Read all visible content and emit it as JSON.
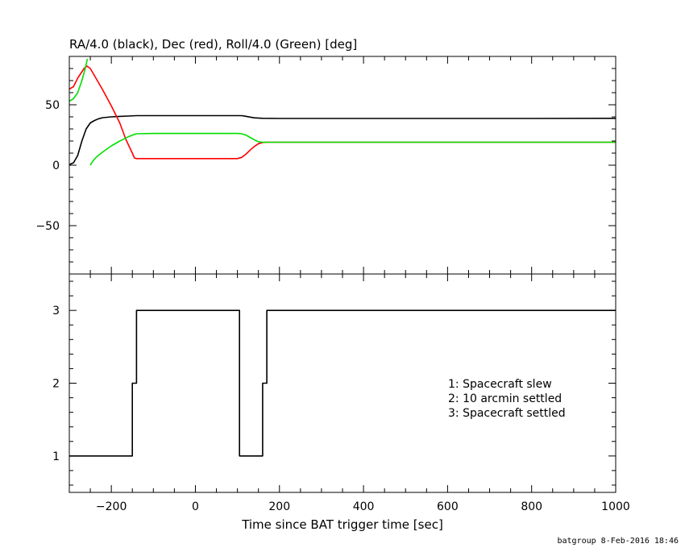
{
  "footer": "batgroup  8-Feb-2016 18:46",
  "chart_data": [
    {
      "type": "line",
      "title": "RA/4.0 (black), Dec (red), Roll/4.0 (Green) [deg]",
      "xlim": [
        -300,
        1000
      ],
      "ylim": [
        -90,
        90
      ],
      "yticks": [
        -50,
        0,
        50
      ],
      "grid": false,
      "series": [
        {
          "name": "RA/4.0",
          "color": "#000000",
          "points": [
            [
              -300,
              0.5
            ],
            [
              -290,
              2
            ],
            [
              -280,
              8
            ],
            [
              -270,
              20
            ],
            [
              -260,
              30
            ],
            [
              -250,
              35
            ],
            [
              -240,
              37
            ],
            [
              -230,
              38.5
            ],
            [
              -220,
              39.3
            ],
            [
              -200,
              40
            ],
            [
              -180,
              40.4
            ],
            [
              -160,
              40.7
            ],
            [
              -140,
              41
            ],
            [
              -100,
              41
            ],
            [
              0,
              41
            ],
            [
              100,
              41
            ],
            [
              110,
              41
            ],
            [
              120,
              40.5
            ],
            [
              130,
              39.8
            ],
            [
              140,
              39.2
            ],
            [
              160,
              38.8
            ],
            [
              200,
              38.7
            ],
            [
              400,
              38.7
            ],
            [
              600,
              38.7
            ],
            [
              800,
              38.7
            ],
            [
              1000,
              38.8
            ]
          ]
        },
        {
          "name": "Dec",
          "color": "#ff0000",
          "points": [
            [
              -300,
              63
            ],
            [
              -290,
              65
            ],
            [
              -280,
              72
            ],
            [
              -265,
              80
            ],
            [
              -258,
              82
            ],
            [
              -250,
              80
            ],
            [
              -240,
              74
            ],
            [
              -220,
              62
            ],
            [
              -200,
              49
            ],
            [
              -180,
              35
            ],
            [
              -165,
              21
            ],
            [
              -150,
              10
            ],
            [
              -145,
              6
            ],
            [
              -140,
              5.5
            ],
            [
              -100,
              5.5
            ],
            [
              0,
              5.5
            ],
            [
              100,
              5.5
            ],
            [
              110,
              6.5
            ],
            [
              120,
              9
            ],
            [
              130,
              12.5
            ],
            [
              140,
              15.5
            ],
            [
              150,
              17.8
            ],
            [
              160,
              18.8
            ],
            [
              170,
              19
            ],
            [
              1000,
              19
            ]
          ]
        },
        {
          "name": "Roll/4.0",
          "color": "#00e000",
          "segments": [
            [
              [
                -300,
                53
              ],
              [
                -290,
                55
              ],
              [
                -280,
                60
              ],
              [
                -270,
                70
              ],
              [
                -262,
                80
              ],
              [
                -257,
                88
              ]
            ],
            [
              [
                -250,
                0
              ],
              [
                -245,
                3
              ],
              [
                -235,
                7
              ],
              [
                -220,
                11
              ],
              [
                -200,
                16
              ],
              [
                -180,
                20
              ],
              [
                -160,
                23.5
              ],
              [
                -145,
                25.5
              ],
              [
                -140,
                26
              ],
              [
                -100,
                26.3
              ],
              [
                0,
                26.3
              ],
              [
                100,
                26.3
              ],
              [
                110,
                26
              ],
              [
                120,
                25
              ],
              [
                130,
                23
              ],
              [
                140,
                21
              ],
              [
                150,
                19.5
              ],
              [
                160,
                19
              ],
              [
                1000,
                19
              ]
            ]
          ]
        }
      ]
    },
    {
      "type": "line",
      "title": "",
      "xlabel": "Time since BAT trigger time [sec]",
      "xlim": [
        -300,
        1000
      ],
      "ylim": [
        0.5,
        3.5
      ],
      "yticks": [
        1,
        2,
        3
      ],
      "xticks": [
        -200,
        0,
        200,
        400,
        600,
        800,
        1000
      ],
      "grid": false,
      "legend_position": "right",
      "legend": [
        "1: Spacecraft slew",
        "2: 10 arcmin settled",
        "3: Spacecraft settled"
      ],
      "series": [
        {
          "color": "#000000",
          "step": true,
          "points": [
            [
              -300,
              1
            ],
            [
              -150,
              1
            ],
            [
              -150,
              2
            ],
            [
              -140,
              2
            ],
            [
              -140,
              3
            ],
            [
              105,
              3
            ],
            [
              105,
              1
            ],
            [
              160,
              1
            ],
            [
              160,
              2
            ],
            [
              170,
              2
            ],
            [
              170,
              3
            ],
            [
              1000,
              3
            ]
          ]
        }
      ]
    }
  ]
}
